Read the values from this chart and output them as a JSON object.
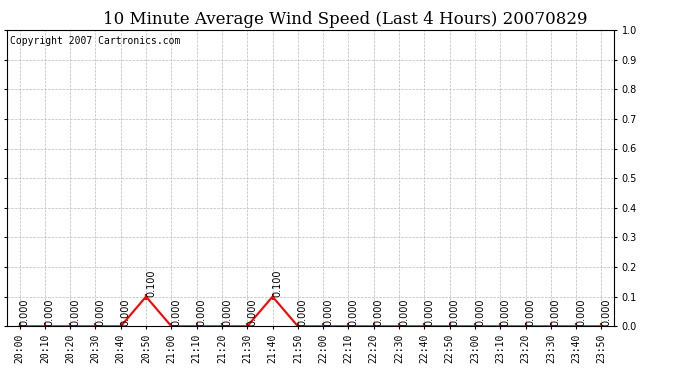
{
  "title": "10 Minute Average Wind Speed (Last 4 Hours) 20070829",
  "copyright_text": "Copyright 2007 Cartronics.com",
  "x_labels": [
    "20:00",
    "20:10",
    "20:20",
    "20:30",
    "20:40",
    "20:50",
    "21:00",
    "21:10",
    "21:20",
    "21:30",
    "21:40",
    "21:50",
    "22:00",
    "22:10",
    "22:20",
    "22:30",
    "22:40",
    "22:50",
    "23:00",
    "23:10",
    "23:20",
    "23:30",
    "23:40",
    "23:50"
  ],
  "y_values": [
    0.0,
    0.0,
    0.0,
    0.0,
    0.0,
    0.1,
    0.0,
    0.0,
    0.0,
    0.0,
    0.1,
    0.0,
    0.0,
    0.0,
    0.0,
    0.0,
    0.0,
    0.0,
    0.0,
    0.0,
    0.0,
    0.0,
    0.0,
    0.0
  ],
  "line_color": "#ff0000",
  "background_color": "#ffffff",
  "grid_color": "#bbbbbb",
  "ylim": [
    0.0,
    1.0
  ],
  "yticks": [
    0.0,
    0.1,
    0.2,
    0.3,
    0.4,
    0.5,
    0.6,
    0.7,
    0.8,
    0.9,
    1.0
  ],
  "title_fontsize": 12,
  "copyright_fontsize": 7,
  "tick_fontsize": 7,
  "label_fontsize": 7
}
